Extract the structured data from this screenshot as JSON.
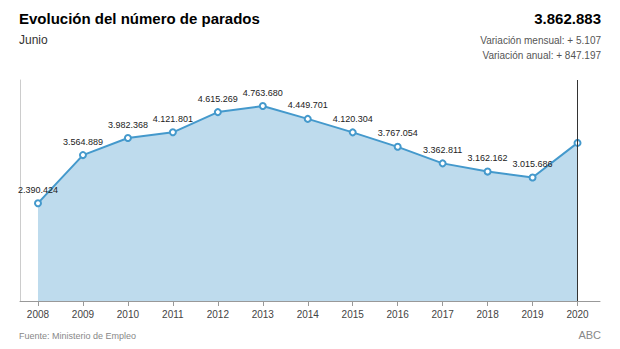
{
  "chart_data": {
    "type": "area",
    "title": "Evolución del número de parados",
    "subtitle": "Junio",
    "x": [
      2008,
      2009,
      2010,
      2011,
      2012,
      2013,
      2014,
      2015,
      2016,
      2017,
      2018,
      2019,
      2020
    ],
    "values": [
      2390424,
      3564889,
      3982368,
      4121801,
      4615269,
      4763680,
      4449701,
      4120304,
      3767054,
      3362811,
      3162162,
      3015686,
      3862883
    ],
    "value_labels": [
      "2.390.424",
      "3.564.889",
      "3.982.368",
      "4.121.801",
      "4.615.269",
      "4.763.680",
      "4.449.701",
      "4.120.304",
      "3.767.054",
      "3.362.811",
      "3.162.162",
      "3.015.686",
      null
    ],
    "data_labels": true,
    "color": "#4499cc",
    "marker": "circle",
    "xlim": [
      2007.6,
      2020.5
    ],
    "xticks": [
      2008,
      2009,
      2010,
      2011,
      2012,
      2013,
      2014,
      2015,
      2016,
      2017,
      2018,
      2019,
      2020
    ],
    "ylim": [
      0,
      5400000
    ],
    "tick_labels": "x",
    "grid": false,
    "annotations": [
      "3.862.883",
      "Variación mensual: + 5.107",
      "Variación anual: + 847.197"
    ],
    "source": "Fuente: Ministerio de Empleo",
    "watermark": "ABC"
  }
}
